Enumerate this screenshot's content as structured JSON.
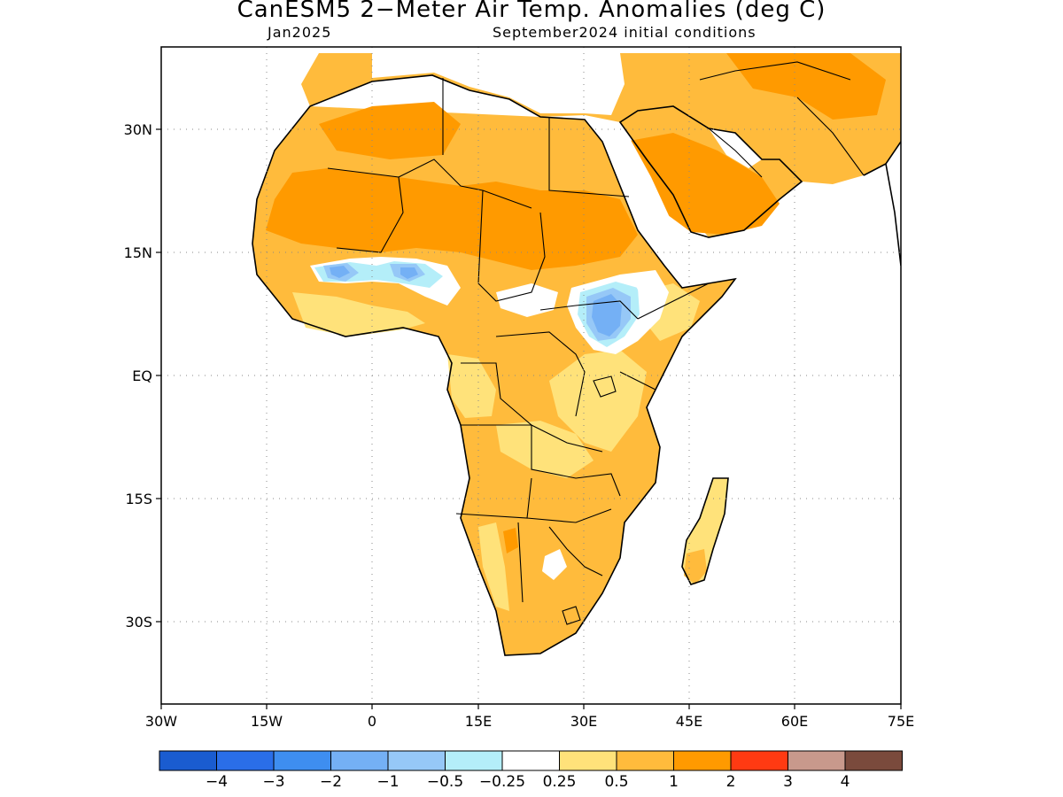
{
  "title": "CanESM5 2−Meter Air Temp. Anomalies (deg C)",
  "subtitle_left": "Jan2025",
  "subtitle_right": "September2024 initial conditions",
  "map": {
    "lon_range": [
      -30,
      75
    ],
    "lat_range": [
      -39,
      39
    ],
    "gridlines": "dotted",
    "x_tick_labels": [
      "30W",
      "15W",
      "0",
      "15E",
      "30E",
      "45E",
      "60E",
      "75E"
    ],
    "y_tick_labels": [
      "30N",
      "15N",
      "EQ",
      "15S",
      "30S"
    ],
    "dominant_anomaly_class": "0.5 to 1 / 1 to 2 (warm)",
    "cool_regions": [
      "Sahel (Mali/Niger/Nigeria border)",
      "South Sudan / Uganda / Lake Victoria"
    ]
  },
  "colorbar": {
    "colors": [
      "#1a5cd0",
      "#2a6ee8",
      "#3e8ef0",
      "#74b0f5",
      "#96c8f7",
      "#b4eef9",
      "#ffffff",
      "#ffe27a",
      "#ffbb3c",
      "#ff9a00",
      "#ff3a12",
      "#c8998c",
      "#7a4a3c"
    ],
    "labels": [
      "−4",
      "−3",
      "−2",
      "−1",
      "−0.5",
      "−0.25",
      "0.25",
      "0.5",
      "1",
      "2",
      "3",
      "4"
    ]
  }
}
